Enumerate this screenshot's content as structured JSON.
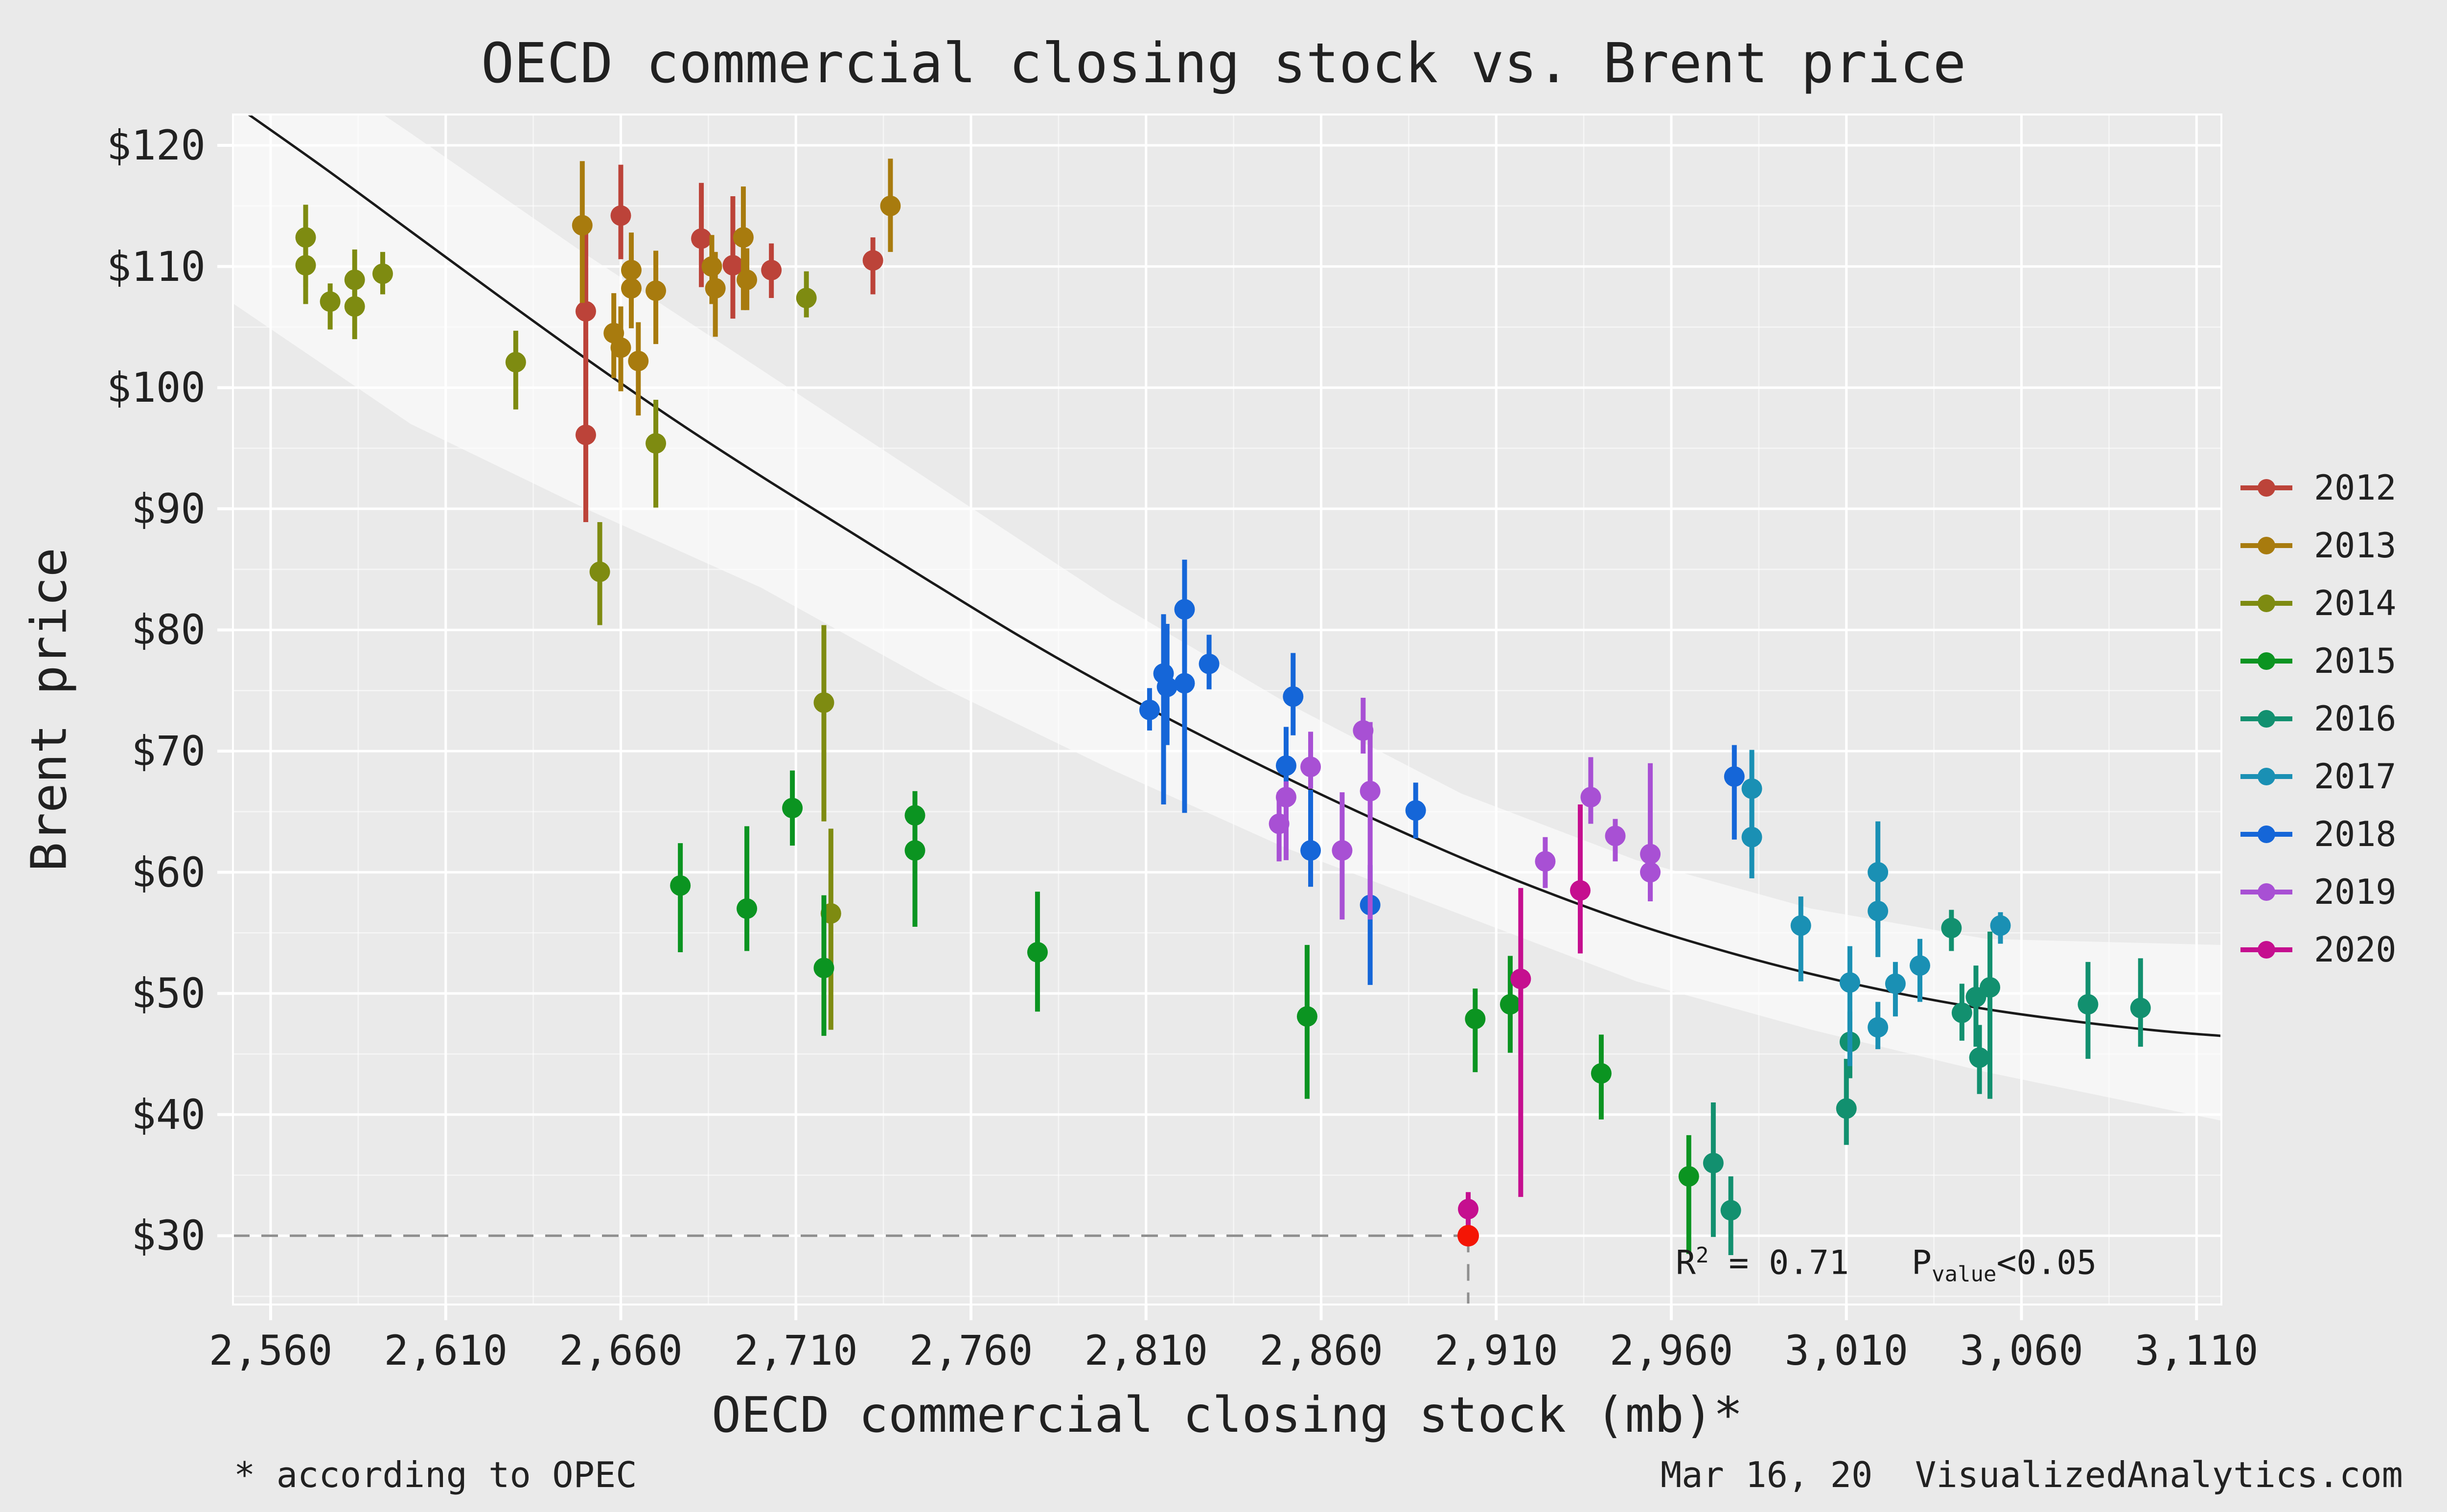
{
  "chart_data": {
    "type": "scatter",
    "title": "OECD commercial closing stock vs. Brent price",
    "xlabel": "OECD commercial closing stock (mb)*",
    "ylabel": "Brent price",
    "xlim": [
      2549,
      3117
    ],
    "ylim": [
      24.3,
      122.5
    ],
    "grid": "on",
    "legend_position": "right",
    "x_ticks": [
      {
        "v": 2560,
        "label": "2,560"
      },
      {
        "v": 2610,
        "label": "2,610"
      },
      {
        "v": 2660,
        "label": "2,660"
      },
      {
        "v": 2710,
        "label": "2,710"
      },
      {
        "v": 2760,
        "label": "2,760"
      },
      {
        "v": 2810,
        "label": "2,810"
      },
      {
        "v": 2860,
        "label": "2,860"
      },
      {
        "v": 2910,
        "label": "2,910"
      },
      {
        "v": 2960,
        "label": "2,960"
      },
      {
        "v": 3010,
        "label": "3,010"
      },
      {
        "v": 3060,
        "label": "3,060"
      },
      {
        "v": 3110,
        "label": "3,110"
      }
    ],
    "y_ticks": [
      {
        "v": 120,
        "label": "$120"
      },
      {
        "v": 110,
        "label": "$110"
      },
      {
        "v": 100,
        "label": "$100"
      },
      {
        "v": 90,
        "label": "$90"
      },
      {
        "v": 80,
        "label": "$80"
      },
      {
        "v": 70,
        "label": "$70"
      },
      {
        "v": 60,
        "label": "$60"
      },
      {
        "v": 50,
        "label": "$50"
      },
      {
        "v": 40,
        "label": "$40"
      },
      {
        "v": 30,
        "label": "$30"
      }
    ],
    "x_minor": [
      2585,
      2635,
      2685,
      2735,
      2785,
      2835,
      2885,
      2935,
      2985,
      3035,
      3085
    ],
    "y_minor": [
      25,
      35,
      45,
      55,
      65,
      75,
      85,
      95,
      105,
      115
    ],
    "series": [
      {
        "name": "2012",
        "color": "#bc4339",
        "points": [
          [
            2650,
            106.3,
            99.0,
            113.2
          ],
          [
            2650,
            96.1,
            88.9,
            104.0
          ],
          [
            2660,
            114.2,
            110.6,
            118.4
          ],
          [
            2683,
            112.3,
            108.3,
            116.9
          ],
          [
            2692,
            110.1,
            105.7,
            115.8
          ],
          [
            2703,
            109.7,
            107.4,
            111.9
          ],
          [
            2732,
            110.5,
            107.7,
            112.4
          ]
        ]
      },
      {
        "name": "2013",
        "color": "#a87b0e",
        "points": [
          [
            2649,
            113.4,
            107.0,
            118.7
          ],
          [
            2658,
            104.5,
            100.8,
            107.8
          ],
          [
            2660,
            103.3,
            99.7,
            106.7
          ],
          [
            2663,
            109.7,
            106.7,
            112.8
          ],
          [
            2663,
            108.2,
            104.9,
            111.0
          ],
          [
            2665,
            102.2,
            97.7,
            105.4
          ],
          [
            2670,
            108.0,
            103.6,
            111.3
          ],
          [
            2686,
            110.0,
            106.9,
            112.6
          ],
          [
            2687,
            108.2,
            104.2,
            111.2
          ],
          [
            2695,
            112.4,
            106.4,
            116.6
          ],
          [
            2696,
            108.9,
            106.4,
            111.5
          ],
          [
            2737,
            115.0,
            111.2,
            118.9
          ]
        ]
      },
      {
        "name": "2014",
        "color": "#7e8b11",
        "points": [
          [
            2570,
            112.4,
            108.3,
            115.1
          ],
          [
            2570,
            110.1,
            106.9,
            113.0
          ],
          [
            2577,
            107.1,
            104.8,
            108.6
          ],
          [
            2584,
            108.9,
            106.5,
            111.4
          ],
          [
            2584,
            106.7,
            104.0,
            109.2
          ],
          [
            2592,
            109.4,
            107.7,
            111.2
          ],
          [
            2630,
            102.1,
            98.2,
            104.7
          ],
          [
            2654,
            84.8,
            80.4,
            88.9
          ],
          [
            2670,
            95.4,
            90.1,
            99.0
          ],
          [
            2713,
            107.4,
            105.8,
            109.6
          ],
          [
            2718,
            74.0,
            64.2,
            80.4
          ],
          [
            2720,
            56.6,
            47.0,
            63.6
          ]
        ]
      },
      {
        "name": "2015",
        "color": "#0b9421",
        "points": [
          [
            2677,
            58.9,
            53.4,
            62.4
          ],
          [
            2696,
            57.0,
            53.5,
            63.8
          ],
          [
            2709,
            65.3,
            62.2,
            68.4
          ],
          [
            2718,
            52.1,
            46.5,
            58.1
          ],
          [
            2744,
            64.7,
            61.0,
            66.7
          ],
          [
            2744,
            61.8,
            55.5,
            64.9
          ],
          [
            2779,
            53.4,
            48.5,
            58.4
          ],
          [
            2856,
            48.1,
            41.3,
            54.0
          ],
          [
            2904,
            47.9,
            43.5,
            50.4
          ],
          [
            2914,
            49.1,
            45.1,
            53.1
          ],
          [
            2940,
            43.4,
            39.6,
            46.6
          ],
          [
            2965,
            34.9,
            28.5,
            38.3
          ]
        ]
      },
      {
        "name": "2016",
        "color": "#12906f",
        "points": [
          [
            2972,
            36.0,
            29.9,
            41.0
          ],
          [
            2977,
            32.1,
            28.4,
            34.9
          ],
          [
            3010,
            40.5,
            37.5,
            44.6
          ],
          [
            3011,
            46.0,
            43.0,
            48.5
          ],
          [
            3040,
            55.4,
            53.5,
            56.9
          ],
          [
            3043,
            48.4,
            46.1,
            50.8
          ],
          [
            3047,
            49.7,
            45.6,
            52.3
          ],
          [
            3051,
            50.5,
            41.3,
            55.1
          ],
          [
            3048,
            44.7,
            41.7,
            47.4
          ],
          [
            3079,
            49.1,
            44.6,
            52.6
          ],
          [
            3094,
            48.8,
            45.6,
            52.9
          ]
        ]
      },
      {
        "name": "2017",
        "color": "#1a90b4",
        "points": [
          [
            2983,
            66.9,
            61.3,
            70.1
          ],
          [
            2983,
            62.9,
            59.5,
            66.5
          ],
          [
            2997,
            55.6,
            51.0,
            58.0
          ],
          [
            3011,
            50.9,
            44.0,
            53.9
          ],
          [
            3019,
            60.0,
            55.4,
            64.2
          ],
          [
            3019,
            56.8,
            53.0,
            60.0
          ],
          [
            3019,
            47.2,
            45.4,
            49.3
          ],
          [
            3024,
            50.8,
            48.1,
            52.6
          ],
          [
            3031,
            52.3,
            49.3,
            54.5
          ],
          [
            3054,
            55.6,
            54.1,
            56.7
          ]
        ]
      },
      {
        "name": "2018",
        "color": "#1566d8",
        "points": [
          [
            2811,
            73.4,
            71.7,
            75.2
          ],
          [
            2815,
            76.4,
            65.6,
            81.3
          ],
          [
            2816,
            75.3,
            70.5,
            80.5
          ],
          [
            2821,
            81.7,
            77.0,
            85.8
          ],
          [
            2821,
            75.6,
            64.9,
            80.9
          ],
          [
            2828,
            77.2,
            75.1,
            79.6
          ],
          [
            2850,
            68.8,
            64.0,
            72.0
          ],
          [
            2852,
            74.5,
            71.3,
            78.1
          ],
          [
            2857,
            61.8,
            58.8,
            66.8
          ],
          [
            2874,
            57.3,
            50.7,
            60.6
          ],
          [
            2887,
            65.1,
            62.8,
            67.4
          ],
          [
            2978,
            67.9,
            62.7,
            70.5
          ]
        ]
      },
      {
        "name": "2019",
        "color": "#a850d4",
        "points": [
          [
            2848,
            64.0,
            60.9,
            66.6
          ],
          [
            2850,
            66.2,
            61.0,
            67.5
          ],
          [
            2857,
            68.7,
            66.9,
            71.6
          ],
          [
            2866,
            61.8,
            56.1,
            66.6
          ],
          [
            2872,
            71.7,
            69.8,
            74.4
          ],
          [
            2874,
            66.7,
            56.1,
            72.4
          ],
          [
            2924,
            60.9,
            58.7,
            62.9
          ],
          [
            2937,
            66.2,
            64.0,
            69.5
          ],
          [
            2944,
            63.0,
            60.9,
            64.4
          ],
          [
            2954,
            61.5,
            57.6,
            69.0
          ],
          [
            2954,
            60.0,
            57.6,
            63.5
          ]
        ]
      },
      {
        "name": "2020",
        "color": "#c50f8f",
        "points": [
          [
            2934,
            58.5,
            53.3,
            65.6
          ],
          [
            2917,
            51.2,
            33.2,
            58.7
          ],
          [
            2902,
            32.2,
            30.6,
            33.6
          ]
        ]
      }
    ],
    "trend": {
      "color": "#1a1a1a",
      "line": [
        [
          2549,
          123.5
        ],
        [
          2575,
          118.2
        ],
        [
          2600,
          112.9
        ],
        [
          2625,
          107.6
        ],
        [
          2650,
          102.4
        ],
        [
          2675,
          97.4
        ],
        [
          2700,
          92.7
        ],
        [
          2725,
          88.2
        ],
        [
          2750,
          83.7
        ],
        [
          2775,
          79.3
        ],
        [
          2800,
          75.2
        ],
        [
          2825,
          71.4
        ],
        [
          2850,
          67.8
        ],
        [
          2875,
          64.4
        ],
        [
          2900,
          61.2
        ],
        [
          2925,
          58.3
        ],
        [
          2950,
          55.7
        ],
        [
          2975,
          53.5
        ],
        [
          3000,
          51.6
        ],
        [
          3025,
          50.0
        ],
        [
          3050,
          48.7
        ],
        [
          3075,
          47.7
        ],
        [
          3100,
          46.9
        ],
        [
          3117,
          46.5
        ]
      ],
      "band_upper": [
        [
          2549,
          131
        ],
        [
          2600,
          121
        ],
        [
          2650,
          111
        ],
        [
          2700,
          101.5
        ],
        [
          2750,
          92
        ],
        [
          2800,
          82.5
        ],
        [
          2850,
          74
        ],
        [
          2900,
          66.5
        ],
        [
          2950,
          61
        ],
        [
          3000,
          57
        ],
        [
          3050,
          54.5
        ],
        [
          3117,
          54
        ]
      ],
      "band_lower": [
        [
          2549,
          107
        ],
        [
          2600,
          97
        ],
        [
          2650,
          90
        ],
        [
          2700,
          83.5
        ],
        [
          2750,
          75.5
        ],
        [
          2800,
          68.5
        ],
        [
          2850,
          62
        ],
        [
          2900,
          56.5
        ],
        [
          2950,
          51
        ],
        [
          3000,
          47
        ],
        [
          3050,
          43.5
        ],
        [
          3117,
          39.5
        ]
      ],
      "band_color": "rgba(255,255,255,0.55)"
    },
    "highlight": {
      "x": 2902,
      "y": 30,
      "color": "#f41505",
      "guide_color": "#8f8f8f"
    },
    "annotation": {
      "r2_prefix": "R",
      "r2_sup": "2",
      "r2_text": " = 0.71",
      "p_prefix": "P",
      "p_sub": "value",
      "p_text": "<0.05"
    },
    "footnote_left": "* according to OPEC",
    "footnote_right": "Mar 16, 20  VisualizedAnalytics.com",
    "colors": {
      "background": "#eaeaea",
      "gridline": "#ffffff",
      "text": "#212121"
    }
  }
}
